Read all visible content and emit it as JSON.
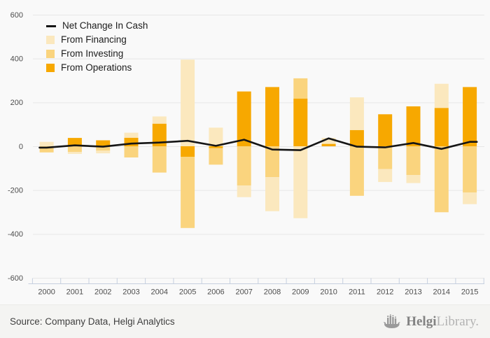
{
  "chart_data": {
    "type": "bar",
    "title": "",
    "xlabel": "",
    "ylabel": "",
    "x": [
      2000,
      2001,
      2002,
      2003,
      2004,
      2005,
      2006,
      2007,
      2008,
      2009,
      2010,
      2011,
      2012,
      2013,
      2014,
      2015
    ],
    "series": [
      {
        "name": "From Operations",
        "type": "bar",
        "color": "#F7A800",
        "values": [
          0,
          38,
          27,
          39,
          103,
          -48,
          -8,
          250,
          270,
          217,
          11,
          74,
          146,
          182,
          175,
          270
        ]
      },
      {
        "name": "From Investing",
        "type": "bar",
        "color": "#FAD47E",
        "values": [
          -28,
          -26,
          -20,
          -51,
          -120,
          -325,
          -76,
          -179,
          -141,
          93,
          0,
          -226,
          -104,
          -131,
          -301,
          -211
        ]
      },
      {
        "name": "From Financing",
        "type": "bar",
        "color": "#FBE8BE",
        "values": [
          20,
          -9,
          -12,
          23,
          33,
          395,
          85,
          -53,
          -155,
          -328,
          27,
          149,
          -59,
          -37,
          110,
          -53
        ]
      },
      {
        "name": "Net Change In Cash",
        "type": "line",
        "color": "#151515",
        "values": [
          -6,
          4,
          -2,
          12,
          17,
          25,
          2,
          30,
          -15,
          -18,
          36,
          -2,
          -5,
          15,
          -12,
          20
        ]
      }
    ],
    "ylim": [
      -600,
      600
    ],
    "yticks": [
      600,
      400,
      200,
      0,
      -200,
      -400,
      -600
    ],
    "grid": true,
    "legend_position": "top-left",
    "stacking": "by-sign, order: Operations, Investing, Financing"
  },
  "footer": {
    "source": "Source: Company Data, Helgi Analytics",
    "logo": {
      "brand_bold": "Helgi",
      "brand_light": "Library."
    }
  },
  "colors": {
    "background": "#f9f9f9",
    "footer_background": "#f4f4f2",
    "gridline": "#e7e7e7",
    "axis": "#c6d0df",
    "tick_text": "#4d4d4d",
    "net_line": "#151515"
  }
}
